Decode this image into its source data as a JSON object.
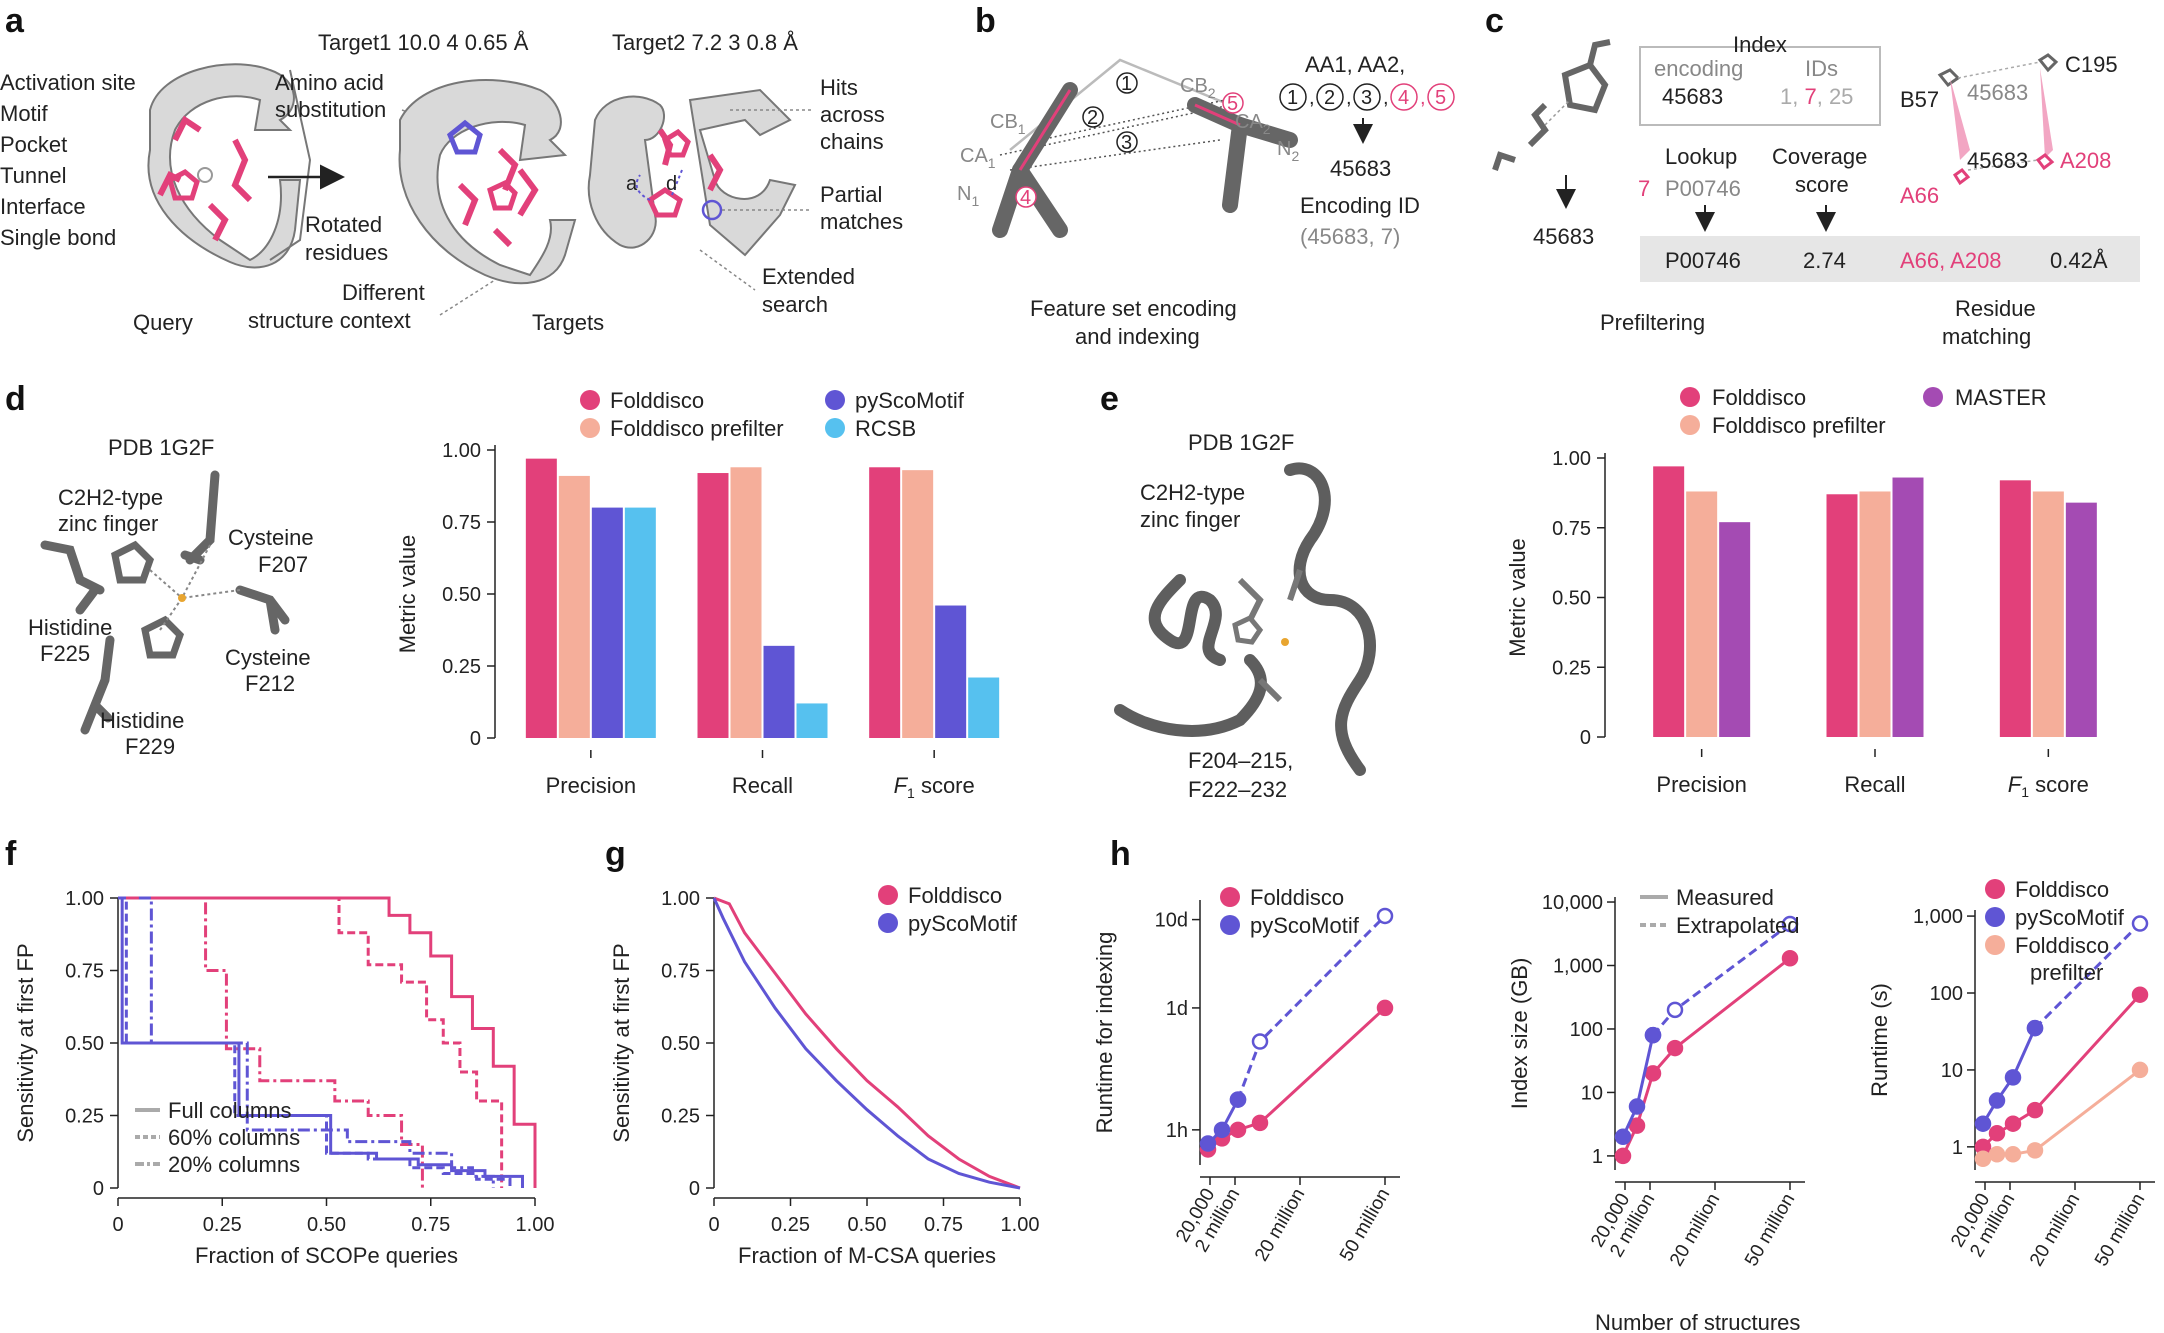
{
  "colors": {
    "folddisco": "#e2407a",
    "prefilter": "#f5ae9a",
    "pyscomotif": "#5f55d4",
    "rcsb": "#56c1ef",
    "master": "#a44bb3",
    "structure": "#5e5e5e",
    "ribbon": "#d9d9d9"
  },
  "icons": [
    "helix-ribbon-structure",
    "pentagon-ring",
    "arrow",
    "circled-number"
  ],
  "panel_a": {
    "label": "a",
    "query_items": [
      "Activation site",
      "Motif",
      "Pocket",
      "Tunnel",
      "Interface",
      "Single bond"
    ],
    "query_caption": "Query",
    "target1": "Target1  10.0  4  0.65 Å",
    "target2": "Target2  7.2  3  0.8 Å",
    "amino_acid": [
      "Amino acid",
      "substitution"
    ],
    "rotated": [
      "Rotated",
      "residues"
    ],
    "different": [
      "Different",
      "structure context"
    ],
    "targets_caption": "Targets",
    "hits": [
      "Hits",
      "across",
      "chains"
    ],
    "partial": [
      "Partial",
      "matches"
    ],
    "extended": [
      "Extended",
      "search"
    ],
    "a_label": "a",
    "d_label": "d"
  },
  "panel_b": {
    "label": "b",
    "feature_list": "AA1, AA2,",
    "circled_black": [
      "1",
      "2",
      "3"
    ],
    "circled_pink": [
      "4",
      "5"
    ],
    "code": "45683",
    "encoding_id_label": "Encoding ID",
    "encoding_id_value": "(45683,   7)",
    "caption": [
      "Feature set encoding",
      "and indexing"
    ],
    "atoms": {
      "cb1": "CB",
      "cb1_sub": "1",
      "ca1": "CA",
      "ca1_sub": "1",
      "n1": "N",
      "n1_sub": "1",
      "cb2": "CB",
      "cb2_sub": "2",
      "ca2": "CA",
      "ca2_sub": "2",
      "n2": "N",
      "n2_sub": "2"
    },
    "line_marks": [
      "1",
      "2",
      "3",
      "4",
      "5"
    ]
  },
  "panel_c": {
    "label": "c",
    "index_title": "Index",
    "encoding_col": "encoding",
    "ids_col": "IDs",
    "encoding_val": "45683",
    "ids_val": {
      "a": "1, ",
      "b": "7",
      "c": ", 25"
    },
    "code_below": "45683",
    "lookup_label": "Lookup",
    "lookup_num": "7",
    "lookup_id": "P00746",
    "coverage_label": [
      "Coverage",
      "score"
    ],
    "result_id": "P00746",
    "result_score": "2.74",
    "result_res": "A66, A208",
    "result_rmsd": "0.42Å",
    "prefiltering": "Prefiltering",
    "residue_matching": [
      "Residue",
      "matching"
    ],
    "res_labels": {
      "b57": "B57",
      "c195": "C195",
      "a66": "A66",
      "a208": "A208",
      "code1": "45683",
      "code2": "45683"
    }
  },
  "panel_d": {
    "label": "d",
    "pdb": "PDB 1G2F",
    "motif": [
      "C2H2-type",
      "zinc finger"
    ],
    "residues": [
      [
        "Cysteine",
        "F207"
      ],
      [
        "Histidine",
        "F225"
      ],
      [
        "Cysteine",
        "F212"
      ],
      [
        "Histidine",
        "F229"
      ]
    ],
    "legend": [
      "Folddisco",
      "Folddisco prefilter",
      "pyScoMotif",
      "RCSB"
    ]
  },
  "panel_e": {
    "label": "e",
    "pdb": "PDB 1G2F",
    "motif": [
      "C2H2-type",
      "zinc finger"
    ],
    "range": [
      "F204–215,",
      "F222–232"
    ],
    "legend": [
      "Folddisco",
      "Folddisco prefilter",
      "MASTER"
    ]
  },
  "panel_f": {
    "label": "f",
    "legend": [
      "Full columns",
      "60% columns",
      "20% columns"
    ]
  },
  "panel_g": {
    "label": "g"
  },
  "panel_h": {
    "label": "h",
    "shared_xlabel": "Number of structures",
    "legend1": [
      "Folddisco",
      "pyScoMotif"
    ],
    "legend2": [
      "Measured",
      "Extrapolated"
    ],
    "legend3": [
      "Folddisco",
      "pyScoMotif",
      "Folddisco",
      "prefilter"
    ]
  },
  "chart_data": [
    {
      "id": "d",
      "type": "bar",
      "categories": [
        "Precision",
        "Recall",
        "F1 score"
      ],
      "series": [
        {
          "name": "Folddisco",
          "values": [
            0.97,
            0.92,
            0.94
          ]
        },
        {
          "name": "Folddisco prefilter",
          "values": [
            0.91,
            0.94,
            0.93
          ]
        },
        {
          "name": "pyScoMotif",
          "values": [
            0.8,
            0.32,
            0.46
          ]
        },
        {
          "name": "RCSB",
          "values": [
            0.8,
            0.12,
            0.21
          ]
        }
      ],
      "ylabel": "Metric value",
      "ylim": [
        0,
        1
      ],
      "yticks": [
        "0",
        "0.25",
        "0.50",
        "0.75",
        "1.00"
      ]
    },
    {
      "id": "e",
      "type": "bar",
      "categories": [
        "Precision",
        "Recall",
        "F1 score"
      ],
      "series": [
        {
          "name": "Folddisco",
          "values": [
            0.97,
            0.87,
            0.92
          ]
        },
        {
          "name": "Folddisco prefilter",
          "values": [
            0.88,
            0.88,
            0.88
          ]
        },
        {
          "name": "MASTER",
          "values": [
            0.77,
            0.93,
            0.84
          ]
        }
      ],
      "ylabel": "Metric value",
      "ylim": [
        0,
        1
      ],
      "yticks": [
        "0",
        "0.25",
        "0.50",
        "0.75",
        "1.00"
      ]
    },
    {
      "id": "f",
      "type": "line",
      "xlabel": "Fraction of SCOPe queries",
      "ylabel": "Sensitivity at first FP",
      "xlim": [
        0,
        1
      ],
      "ylim": [
        0,
        1
      ],
      "xticks": [
        "0",
        "0.25",
        "0.50",
        "0.75",
        "1.00"
      ],
      "yticks": [
        "0",
        "0.25",
        "0.50",
        "0.75",
        "1.00"
      ],
      "series": [
        {
          "name": "Full columns",
          "tool": "Folddisco",
          "x": [
            0,
            0.6,
            0.65,
            0.7,
            0.75,
            0.8,
            0.85,
            0.9,
            0.95,
            1.0
          ],
          "y": [
            1,
            1,
            0.94,
            0.88,
            0.8,
            0.66,
            0.55,
            0.42,
            0.22,
            0
          ]
        },
        {
          "name": "60% columns",
          "tool": "Folddisco",
          "x": [
            0,
            0.49,
            0.53,
            0.6,
            0.68,
            0.74,
            0.78,
            0.82,
            0.86,
            0.92
          ],
          "y": [
            1,
            1,
            0.88,
            0.77,
            0.71,
            0.58,
            0.5,
            0.4,
            0.3,
            0
          ]
        },
        {
          "name": "20% columns",
          "tool": "Folddisco",
          "x": [
            0,
            0.2,
            0.21,
            0.26,
            0.34,
            0.44,
            0.52,
            0.6,
            0.68,
            0.73
          ],
          "y": [
            1,
            1,
            0.75,
            0.48,
            0.37,
            0.37,
            0.3,
            0.25,
            0.15,
            0
          ]
        },
        {
          "name": "Full columns",
          "tool": "pyScoMotif",
          "x": [
            0,
            0.01,
            0.28,
            0.29,
            0.5,
            0.51,
            0.62,
            0.72,
            0.8,
            0.88,
            0.97
          ],
          "y": [
            1,
            0.5,
            0.5,
            0.25,
            0.25,
            0.12,
            0.1,
            0.08,
            0.06,
            0.04,
            0
          ]
        },
        {
          "name": "60% columns",
          "tool": "pyScoMotif",
          "x": [
            0,
            0.02,
            0.27,
            0.28,
            0.48,
            0.5,
            0.6,
            0.7,
            0.78,
            0.86,
            0.94
          ],
          "y": [
            1,
            0.5,
            0.5,
            0.25,
            0.25,
            0.12,
            0.1,
            0.07,
            0.05,
            0.03,
            0
          ]
        },
        {
          "name": "20% columns",
          "tool": "pyScoMotif",
          "x": [
            0.05,
            0.07,
            0.08,
            0.3,
            0.31,
            0.55,
            0.7,
            0.8,
            0.85,
            0.9
          ],
          "y": [
            1,
            1,
            0.5,
            0.5,
            0.2,
            0.16,
            0.12,
            0.07,
            0.04,
            0
          ]
        }
      ]
    },
    {
      "id": "g",
      "type": "line",
      "xlabel": "Fraction of M-CSA queries",
      "ylabel": "Sensitivity at first FP",
      "xlim": [
        0,
        1
      ],
      "ylim": [
        0,
        1
      ],
      "xticks": [
        "0",
        "0.25",
        "0.50",
        "0.75",
        "1.00"
      ],
      "yticks": [
        "0",
        "0.25",
        "0.50",
        "0.75",
        "1.00"
      ],
      "series": [
        {
          "name": "Folddisco",
          "x": [
            0,
            0.05,
            0.1,
            0.2,
            0.3,
            0.4,
            0.5,
            0.6,
            0.7,
            0.8,
            0.9,
            1.0
          ],
          "y": [
            1,
            0.98,
            0.88,
            0.74,
            0.6,
            0.48,
            0.37,
            0.28,
            0.18,
            0.1,
            0.04,
            0
          ]
        },
        {
          "name": "pyScoMotif",
          "x": [
            0,
            0.03,
            0.1,
            0.2,
            0.3,
            0.4,
            0.5,
            0.6,
            0.7,
            0.8,
            0.9,
            1.0
          ],
          "y": [
            1,
            0.93,
            0.78,
            0.62,
            0.48,
            0.37,
            0.27,
            0.18,
            0.1,
            0.05,
            0.02,
            0
          ]
        }
      ]
    },
    {
      "id": "h1",
      "type": "line",
      "ylabel": "Runtime for indexing",
      "xticks": [
        "20,000",
        "2 million",
        "20 million",
        "50 million"
      ],
      "yticks": [
        "1h",
        "1d",
        "10d"
      ],
      "series": [
        {
          "name": "Folddisco",
          "style": "measured",
          "x": [
            20000,
            200000,
            2000000,
            5000000,
            50000000
          ],
          "y_label_units": "hours",
          "y": [
            0.6,
            0.8,
            1.0,
            1.2,
            24
          ]
        },
        {
          "name": "pyScoMotif",
          "style": "measured",
          "x": [
            20000,
            200000,
            2000000
          ],
          "y": [
            0.7,
            1.0,
            2.2
          ]
        },
        {
          "name": "pyScoMotif",
          "style": "extrapolated",
          "x": [
            2000000,
            5000000,
            50000000
          ],
          "y": [
            2.2,
            10,
            264
          ]
        }
      ]
    },
    {
      "id": "h2",
      "type": "line",
      "ylabel": "Index size (GB)",
      "xticks": [
        "20,000",
        "2 million",
        "20 million",
        "50 million"
      ],
      "yticks": [
        "1",
        "10",
        "100",
        "1,000",
        "10,000"
      ],
      "series": [
        {
          "name": "Folddisco",
          "style": "measured",
          "x": [
            20000,
            200000,
            2000000,
            5000000,
            50000000
          ],
          "y": [
            1,
            3,
            20,
            50,
            1300
          ]
        },
        {
          "name": "pyScoMotif",
          "style": "measured",
          "x": [
            20000,
            200000,
            2000000
          ],
          "y": [
            2,
            6,
            80
          ]
        },
        {
          "name": "pyScoMotif",
          "style": "extrapolated",
          "x": [
            2000000,
            5000000,
            50000000
          ],
          "y": [
            80,
            200,
            4500
          ]
        }
      ]
    },
    {
      "id": "h3",
      "type": "line",
      "ylabel": "Runtime (s)",
      "xticks": [
        "20,000",
        "2 million",
        "20 million",
        "50 million"
      ],
      "yticks": [
        "1",
        "10",
        "100",
        "1,000"
      ],
      "series": [
        {
          "name": "Folddisco",
          "style": "measured",
          "x": [
            20000,
            200000,
            2000000,
            5000000,
            50000000
          ],
          "y": [
            1,
            1.5,
            2,
            3,
            95
          ]
        },
        {
          "name": "pyScoMotif",
          "style": "measured",
          "x": [
            20000,
            200000,
            2000000,
            5000000
          ],
          "y": [
            2,
            4,
            8,
            35
          ]
        },
        {
          "name": "pyScoMotif",
          "style": "extrapolated",
          "x": [
            5000000,
            50000000
          ],
          "y": [
            35,
            800
          ]
        },
        {
          "name": "Folddisco prefilter",
          "style": "measured",
          "x": [
            20000,
            200000,
            2000000,
            5000000,
            50000000
          ],
          "y": [
            0.7,
            0.8,
            0.8,
            0.9,
            10
          ]
        }
      ]
    }
  ]
}
